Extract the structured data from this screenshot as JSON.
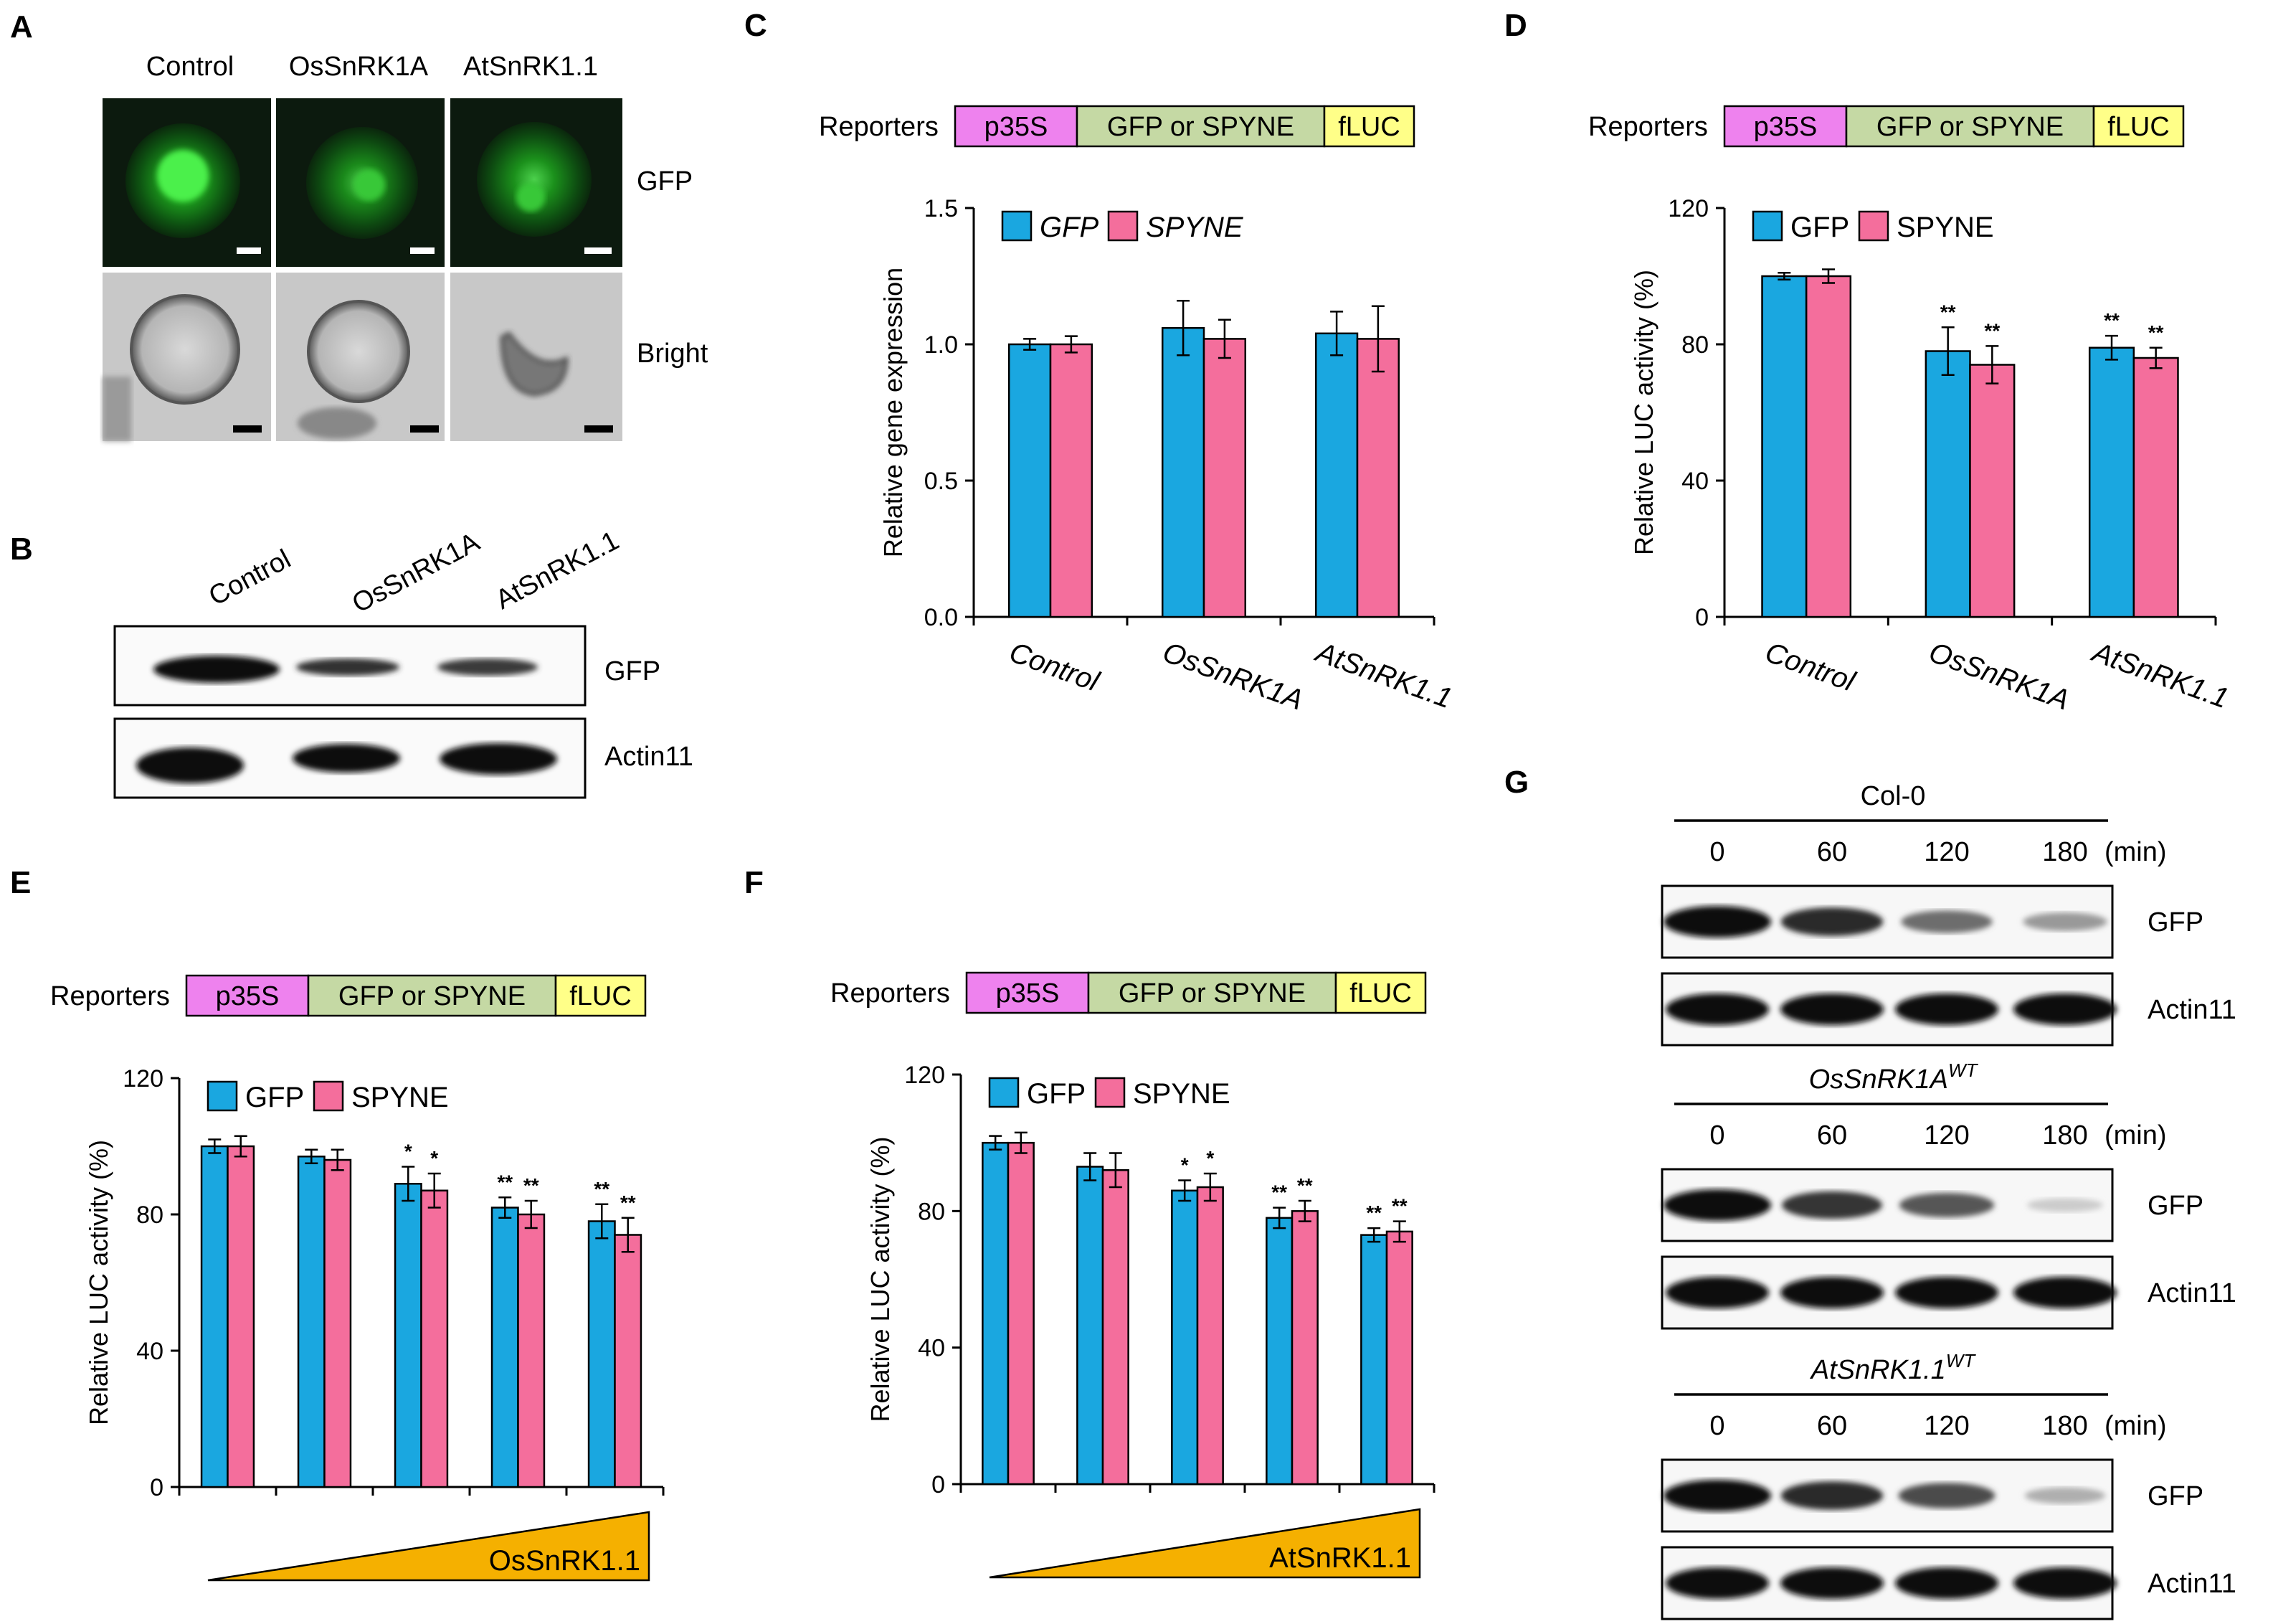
{
  "colors": {
    "gfp": "#1aa7e0",
    "spyne": "#f46e9c",
    "p35s": "#ee82ee",
    "gfp_or_spyne": "#c5d9a4",
    "fluc": "#ffff88",
    "triangle": "#f5b000",
    "cell_fluor": "#1aa31a"
  },
  "panels": {
    "A": {
      "letter": "A",
      "columns": [
        "Control",
        "OsSnRK1A",
        "AtSnRK1.1"
      ],
      "rows": [
        "GFP",
        "Bright"
      ]
    },
    "B": {
      "letter": "B",
      "lanes": [
        "Control",
        "OsSnRK1A",
        "AtSnRK1.1"
      ],
      "bands": [
        "GFP",
        "Actin11"
      ]
    },
    "C": {
      "letter": "C"
    },
    "D": {
      "letter": "D"
    },
    "E": {
      "letter": "E"
    },
    "F": {
      "letter": "F"
    },
    "G": {
      "letter": "G",
      "blocks": [
        {
          "title": "Col-0",
          "sup": "",
          "italic": false,
          "times": [
            "0",
            "60",
            "120",
            "180"
          ],
          "unit": "(min)",
          "bands": [
            "GFP",
            "Actin11"
          ]
        },
        {
          "title": "OsSnRK1A",
          "sup": "WT",
          "italic": true,
          "times": [
            "0",
            "60",
            "120",
            "180"
          ],
          "unit": "(min)",
          "bands": [
            "GFP",
            "Actin11"
          ]
        },
        {
          "title": "AtSnRK1.1",
          "sup": "WT",
          "italic": true,
          "times": [
            "0",
            "60",
            "120",
            "180"
          ],
          "unit": "(min)",
          "bands": [
            "GFP",
            "Actin11"
          ]
        }
      ]
    }
  },
  "reporter": {
    "label": "Reporters",
    "segments": [
      "p35S",
      "GFP or SPYNE",
      "fLUC"
    ]
  },
  "chart_data": [
    {
      "panel": "C",
      "type": "bar",
      "ylabel": "Relative gene expression",
      "ylim": [
        0,
        1.5
      ],
      "yticks": [
        "0.0",
        "0.5",
        "1.0",
        "1.5"
      ],
      "categories": [
        "Control",
        "OsSnRK1A",
        "AtSnRK1.1"
      ],
      "category_style": "italic",
      "legend_italic": true,
      "series": [
        {
          "name": "GFP",
          "values": [
            1.0,
            1.06,
            1.04
          ],
          "errors": [
            0.02,
            0.1,
            0.08
          ],
          "sig": [
            "",
            "",
            ""
          ]
        },
        {
          "name": "SPYNE",
          "values": [
            1.0,
            1.02,
            1.02
          ],
          "errors": [
            0.03,
            0.07,
            0.12
          ],
          "sig": [
            "",
            "",
            ""
          ]
        }
      ],
      "legend": "top-left",
      "x_triangle": ""
    },
    {
      "panel": "D",
      "type": "bar",
      "ylabel": "Relative LUC activity (%)",
      "ylim": [
        0,
        120
      ],
      "yticks": [
        "0",
        "40",
        "80",
        "120"
      ],
      "categories": [
        "Control",
        "OsSnRK1A",
        "AtSnRK1.1"
      ],
      "category_style": "italic",
      "legend_italic": false,
      "series": [
        {
          "name": "GFP",
          "values": [
            100,
            78,
            79
          ],
          "errors": [
            1,
            7,
            3.5
          ],
          "sig": [
            "",
            "**",
            "**"
          ]
        },
        {
          "name": "SPYNE",
          "values": [
            100,
            74,
            76
          ],
          "errors": [
            2,
            5.5,
            3
          ],
          "sig": [
            "",
            "**",
            "**"
          ]
        }
      ],
      "legend": "top-left",
      "x_triangle": ""
    },
    {
      "panel": "E",
      "type": "bar",
      "ylabel": "Relative LUC activity (%)",
      "ylim": [
        0,
        120
      ],
      "yticks": [
        "0",
        "40",
        "80",
        "120"
      ],
      "categories": [
        "",
        "",
        "",
        "",
        ""
      ],
      "category_style": "normal",
      "legend_italic": false,
      "series": [
        {
          "name": "GFP",
          "values": [
            100,
            97,
            89,
            82,
            78
          ],
          "errors": [
            2,
            2,
            5,
            3,
            5
          ],
          "sig": [
            "",
            "",
            "*",
            "**",
            "**"
          ]
        },
        {
          "name": "SPYNE",
          "values": [
            100,
            96,
            87,
            80,
            74
          ],
          "errors": [
            3,
            3,
            5,
            4,
            5
          ],
          "sig": [
            "",
            "",
            "*",
            "**",
            "**"
          ]
        }
      ],
      "legend": "top-left",
      "x_triangle": "OsSnRK1.1"
    },
    {
      "panel": "F",
      "type": "bar",
      "ylabel": "Relative LUC activity (%)",
      "ylim": [
        0,
        120
      ],
      "yticks": [
        "0",
        "40",
        "80",
        "120"
      ],
      "categories": [
        "",
        "",
        "",
        "",
        ""
      ],
      "category_style": "normal",
      "legend_italic": false,
      "series": [
        {
          "name": "GFP",
          "values": [
            100,
            93,
            86,
            78,
            73
          ],
          "errors": [
            2,
            4,
            3,
            3,
            2
          ],
          "sig": [
            "",
            "",
            "*",
            "**",
            "**"
          ]
        },
        {
          "name": "SPYNE",
          "values": [
            100,
            92,
            87,
            80,
            74
          ],
          "errors": [
            3,
            5,
            4,
            3,
            3
          ],
          "sig": [
            "",
            "",
            "*",
            "**",
            "**"
          ]
        }
      ],
      "legend": "top-left",
      "x_triangle": "AtSnRK1.1"
    }
  ]
}
